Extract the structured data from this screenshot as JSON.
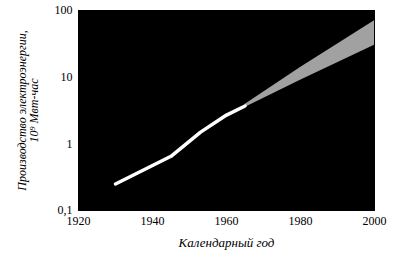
{
  "chart_data": {
    "type": "line",
    "x_label": "Календарный год",
    "y_label": "Производство электроэнергии,\n10⁹ Мвт-час",
    "x": [
      1930,
      1945,
      1953,
      1960,
      1965
    ],
    "values": [
      0.25,
      0.65,
      1.5,
      2.7,
      3.7
    ],
    "color": "#ffffff",
    "forecast": {
      "x": [
        1965,
        1980,
        2000
      ],
      "low": [
        3.5,
        9,
        30
      ],
      "high": [
        3.9,
        14,
        70
      ],
      "color": "#bdbdbd"
    },
    "xlim": [
      1920,
      2000
    ],
    "xticks": [
      1920,
      1940,
      1960,
      1980,
      2000
    ],
    "ylim": [
      0.1,
      100
    ],
    "yticks": [
      {
        "value": 0.1,
        "label": "0,1"
      },
      1,
      10,
      100
    ],
    "log": "y",
    "grid": false
  }
}
